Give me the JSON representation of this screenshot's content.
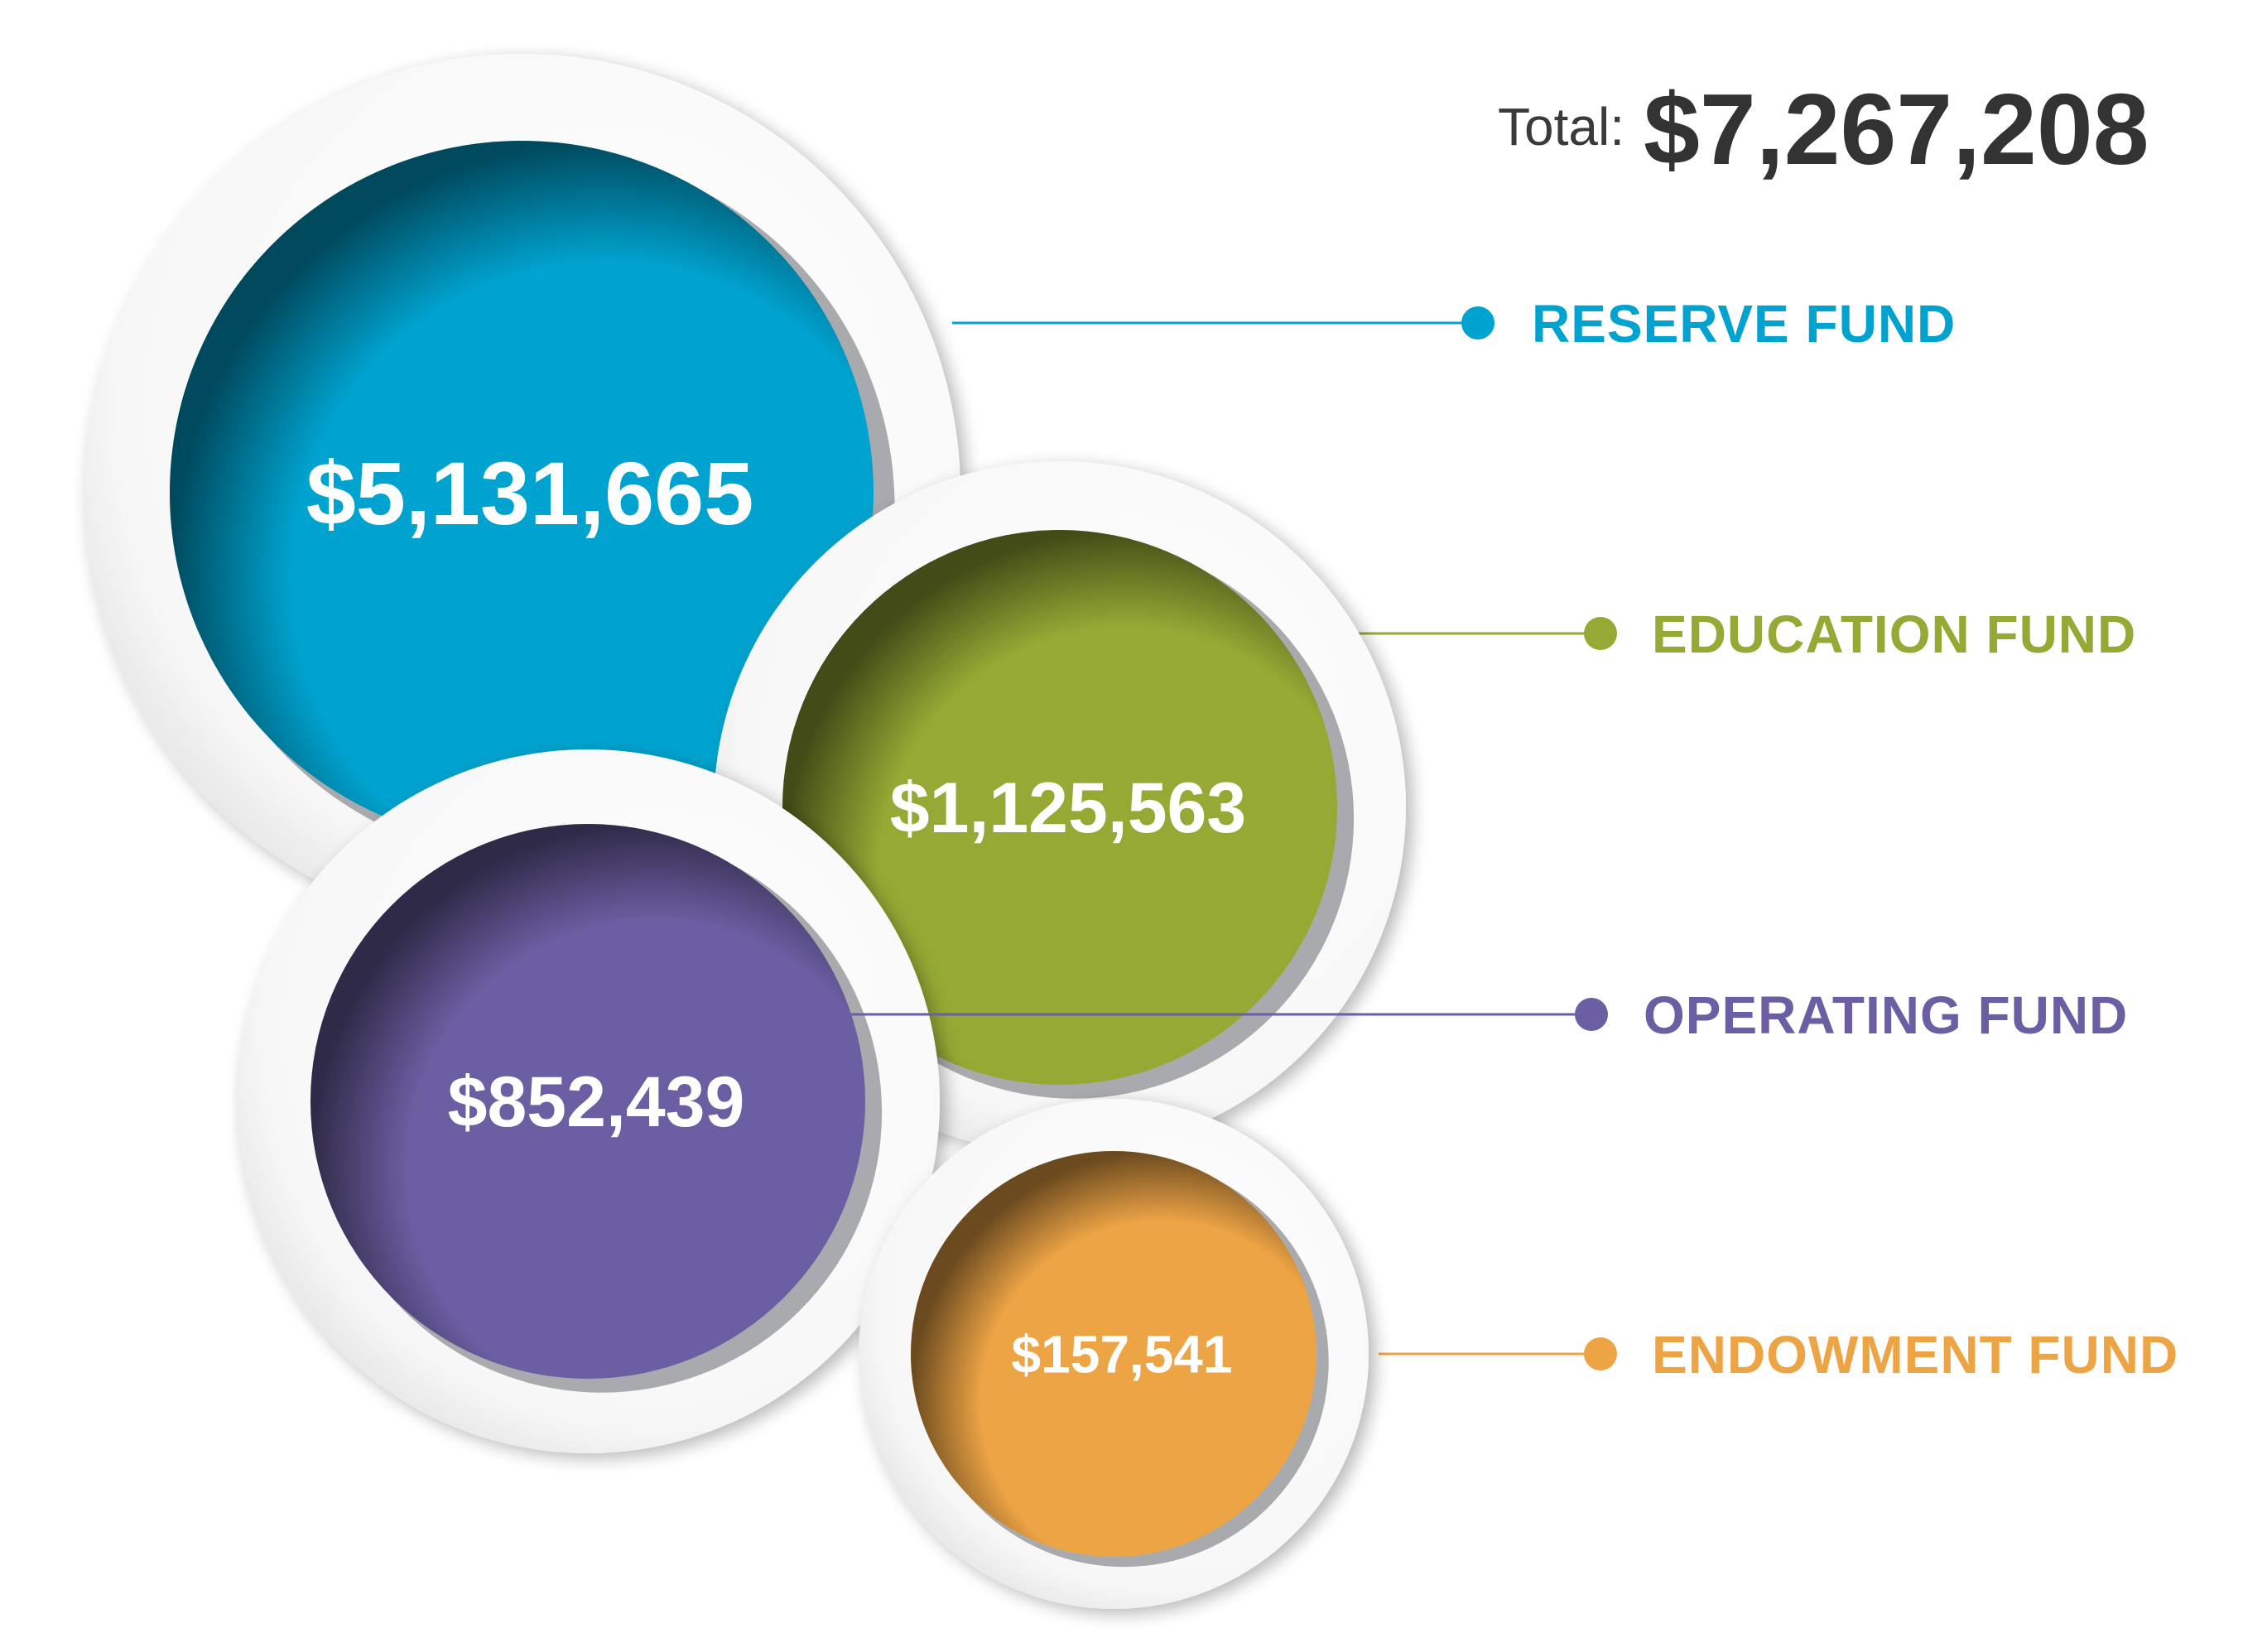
{
  "chart_data": {
    "type": "bubble",
    "total": {
      "label": "Total:",
      "value_text": "$7,267,208",
      "value": 7267208
    },
    "series": [
      {
        "name": "RESERVE FUND",
        "value": 5131665,
        "value_text": "$5,131,665",
        "color": "#00a3cf"
      },
      {
        "name": "EDUCATION FUND",
        "value": 1125563,
        "value_text": "$1,125,563",
        "color": "#95a934"
      },
      {
        "name": "OPERATING FUND",
        "value": 852439,
        "value_text": "$852,439",
        "color": "#6b5ea2"
      },
      {
        "name": "ENDOWMENT FUND",
        "value": 157541,
        "value_text": "$157,541",
        "color": "#eda445"
      }
    ]
  }
}
